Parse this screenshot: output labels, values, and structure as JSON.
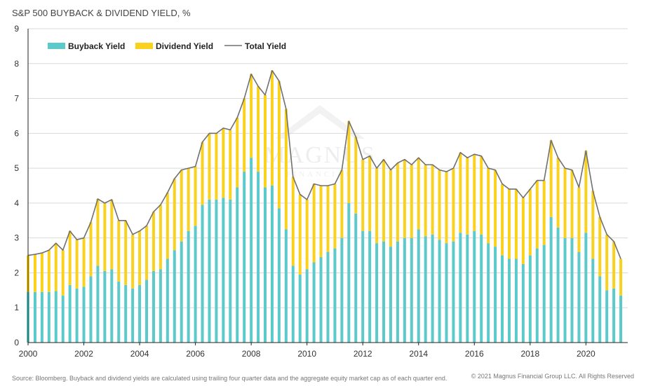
{
  "chart_data": {
    "type": "bar",
    "title": "S&P 500 BUYBACK & DIVIDEND YIELD, %",
    "ylim": [
      0,
      9
    ],
    "yticks": [
      "0",
      "1",
      "2",
      "3",
      "4",
      "5",
      "6",
      "7",
      "8",
      "9"
    ],
    "xticks": [
      "2000",
      "2002",
      "2004",
      "2006",
      "2008",
      "2010",
      "2012",
      "2014",
      "2016",
      "2018",
      "2020"
    ],
    "x_start": 2000,
    "x_step": 0.25,
    "grid": true,
    "legend_position": "top-left",
    "series": [
      {
        "name": "Buyback Yield",
        "kind": "bar",
        "color": "#5CC9CB",
        "values": [
          1.45,
          1.45,
          1.45,
          1.45,
          1.48,
          1.35,
          1.65,
          1.55,
          1.6,
          1.9,
          2.2,
          2.05,
          2.1,
          1.75,
          1.65,
          1.55,
          1.65,
          1.8,
          2.05,
          2.1,
          2.4,
          2.65,
          2.9,
          3.2,
          3.35,
          3.95,
          4.1,
          4.1,
          4.15,
          4.1,
          4.45,
          4.9,
          5.3,
          4.9,
          4.45,
          4.5,
          3.85,
          3.25,
          2.2,
          1.95,
          2.1,
          2.3,
          2.45,
          2.6,
          2.7,
          3.0,
          4.0,
          3.7,
          3.2,
          3.2,
          2.85,
          2.9,
          2.75,
          2.9,
          3.0,
          3.0,
          3.25,
          3.05,
          3.1,
          2.95,
          2.85,
          2.9,
          3.15,
          3.1,
          3.2,
          3.1,
          2.85,
          2.75,
          2.5,
          2.4,
          2.4,
          2.25,
          2.5,
          2.7,
          2.8,
          3.6,
          3.3,
          3.0,
          3.0,
          2.6,
          3.15,
          2.4,
          1.9,
          1.5,
          1.55,
          1.35
        ]
      },
      {
        "name": "Dividend Yield",
        "kind": "bar",
        "color": "#FAD21E",
        "values": [
          1.05,
          1.08,
          1.12,
          1.2,
          1.37,
          1.3,
          1.55,
          1.4,
          1.4,
          1.55,
          1.92,
          1.95,
          2.0,
          1.75,
          1.85,
          1.55,
          1.55,
          1.55,
          1.7,
          1.85,
          1.9,
          2.05,
          2.05,
          1.8,
          1.7,
          1.8,
          1.9,
          1.9,
          2.0,
          2.0,
          2.0,
          2.1,
          2.4,
          2.45,
          2.65,
          3.3,
          3.65,
          3.45,
          2.55,
          2.3,
          2.0,
          2.25,
          2.05,
          1.9,
          1.85,
          1.95,
          2.35,
          2.2,
          2.05,
          2.15,
          2.15,
          2.35,
          2.2,
          2.25,
          2.25,
          2.1,
          2.05,
          2.05,
          2.0,
          2.0,
          2.05,
          2.1,
          2.3,
          2.2,
          2.2,
          2.25,
          2.15,
          2.2,
          2.05,
          2.0,
          2.0,
          1.9,
          1.9,
          1.95,
          1.85,
          2.2,
          2.0,
          2.0,
          1.95,
          1.85,
          2.35,
          1.95,
          1.7,
          1.6,
          1.35,
          1.05
        ]
      },
      {
        "name": "Total Yield",
        "kind": "line",
        "color": "#707070",
        "values": [
          2.5,
          2.53,
          2.57,
          2.65,
          2.85,
          2.65,
          3.2,
          2.95,
          3.0,
          3.45,
          4.12,
          4.0,
          4.1,
          3.5,
          3.5,
          3.1,
          3.2,
          3.35,
          3.75,
          3.95,
          4.3,
          4.7,
          4.95,
          5.0,
          5.05,
          5.75,
          6.0,
          6.0,
          6.15,
          6.1,
          6.45,
          7.0,
          7.7,
          7.35,
          7.1,
          7.8,
          7.5,
          6.7,
          4.75,
          4.25,
          4.1,
          4.55,
          4.5,
          4.5,
          4.55,
          4.95,
          6.35,
          5.9,
          5.25,
          5.35,
          5.0,
          5.25,
          4.95,
          5.15,
          5.25,
          5.1,
          5.3,
          5.1,
          5.1,
          4.95,
          4.9,
          5.0,
          5.45,
          5.3,
          5.4,
          5.35,
          5.0,
          4.95,
          4.55,
          4.4,
          4.4,
          4.15,
          4.4,
          4.65,
          4.65,
          5.8,
          5.3,
          5.0,
          4.95,
          4.45,
          5.5,
          4.35,
          3.6,
          3.1,
          2.9,
          2.4
        ]
      }
    ]
  },
  "footer": {
    "source": "Source: Bloomberg. Buyback and dividend yields are calculated using trailing four quarter data and the aggregate equity market cap as of each quarter end.",
    "copyright": "© 2021 Magnus Financial Group LLC. All Rights Reserved"
  },
  "watermark": {
    "text": "MAGNUS",
    "sub": "FINANCIAL"
  }
}
